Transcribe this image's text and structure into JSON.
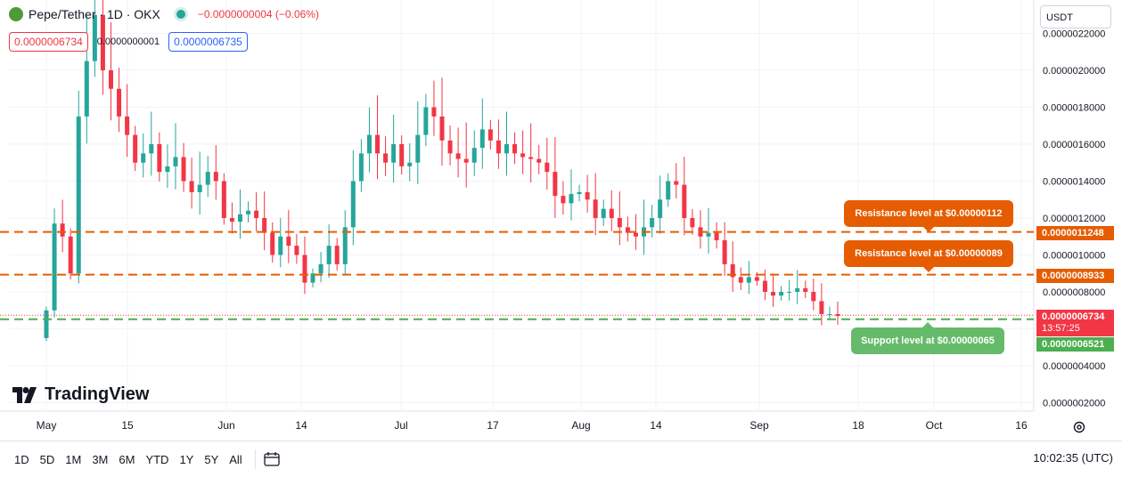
{
  "header": {
    "title": "Pepe/Tether · 1D · OKX",
    "change": "−0.0000000004 (−0.06%)",
    "ohlc": {
      "sell": "0.0000006734",
      "spread": "0.0000000001",
      "buy": "0.0000006735"
    }
  },
  "currency": "USDT",
  "annotations": {
    "res1": "Resistance level at $0.00000112",
    "res2": "Resistance level at $0.00000089",
    "sup": "Support level at $0.00000065"
  },
  "price_labels": {
    "r1": "0.0000011248",
    "r2": "0.0000008933",
    "cur": "0.0000006734",
    "countdown": "13:57:25",
    "sup": "0.0000006521"
  },
  "brand": "TradingView",
  "timeframes": [
    "1D",
    "5D",
    "1M",
    "3M",
    "6M",
    "YTD",
    "1Y",
    "5Y",
    "All"
  ],
  "clock": "10:02:35 (UTC)",
  "colors": {
    "up": "#26a69a",
    "down": "#f23645",
    "resistance": "#e65c00",
    "support": "#4caf50"
  },
  "icons": [
    "pepe-logo-icon",
    "market-status-icon",
    "chevron-down-icon",
    "calendar-icon",
    "gear-icon",
    "tradingview-logo-icon"
  ],
  "chart_data": {
    "type": "candlestick",
    "y_scale": "linear",
    "y_ticks": [
      "0.0000022000",
      "0.0000020000",
      "0.0000018000",
      "0.0000016000",
      "0.0000014000",
      "0.0000012000",
      "0.0000010000",
      "0.0000008000",
      "0.0000006000",
      "0.0000004000",
      "0.0000002000"
    ],
    "ylim": [
      1.3e-07,
      2.35e-06
    ],
    "x_ticks": [
      "May",
      "15",
      "Jun",
      "14",
      "Jul",
      "17",
      "Aug",
      "14",
      "Sep",
      "18",
      "Oct",
      "16"
    ],
    "grid": true,
    "lines": [
      {
        "label": "Resistance level at $0.00000112",
        "value": 1.1248e-06,
        "style": "dashed",
        "color": "#e65c00"
      },
      {
        "label": "Resistance level at $0.00000089",
        "value": 8.933e-07,
        "style": "dashed",
        "color": "#e65c00"
      },
      {
        "label": "Support level at $0.00000065",
        "value": 6.521e-07,
        "style": "dashed",
        "color": "#4caf50"
      }
    ],
    "last_price": 6.734e-07,
    "candle_closes_e8": [
      70,
      117,
      110,
      90,
      175,
      205,
      230,
      200,
      190,
      175,
      165,
      150,
      155,
      160,
      145,
      148,
      153,
      140,
      134,
      138,
      145,
      140,
      120,
      118,
      122,
      124,
      120,
      112,
      100,
      110,
      105,
      100,
      85,
      90,
      95,
      105,
      95,
      115,
      140,
      155,
      165,
      155,
      150,
      160,
      148,
      150,
      165,
      180,
      175,
      162,
      155,
      152,
      150,
      158,
      168,
      162,
      155,
      160,
      155,
      153,
      152,
      150,
      145,
      132,
      128,
      133,
      134,
      130,
      120,
      125,
      120,
      115,
      112,
      110,
      115,
      120,
      130,
      140,
      138,
      120,
      115,
      110,
      112,
      108,
      95,
      88,
      85,
      88,
      86,
      80,
      78,
      80,
      80,
      82,
      80,
      75,
      68,
      68,
      67
    ]
  }
}
